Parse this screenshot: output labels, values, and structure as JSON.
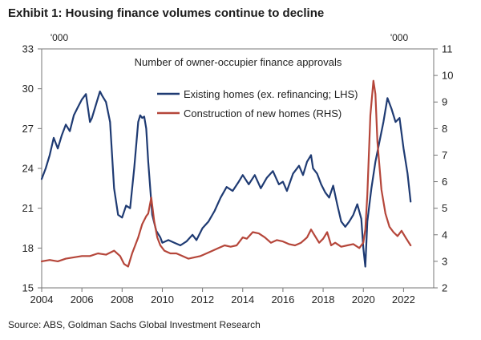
{
  "header": {
    "title": "Exhibit 1: Housing finance volumes continue to decline"
  },
  "footer": {
    "source": "Source: ABS, Goldman Sachs Global Investment Research"
  },
  "chart_data": {
    "type": "line",
    "title": "Number of owner-occupier finance approvals",
    "left_unit": "'000",
    "right_unit": "'000",
    "left_axis": {
      "ylim": [
        15,
        33
      ],
      "ticks": [
        15,
        18,
        21,
        24,
        27,
        30,
        33
      ]
    },
    "right_axis": {
      "ylim": [
        2,
        11
      ],
      "ticks": [
        2,
        3,
        4,
        5,
        6,
        7,
        8,
        9,
        10,
        11
      ]
    },
    "x_axis": {
      "xlim": [
        2004,
        2023.5
      ],
      "ticks": [
        2004,
        2006,
        2008,
        2010,
        2012,
        2014,
        2016,
        2018,
        2020,
        2022
      ]
    },
    "series": [
      {
        "name": "Existing homes (ex. refinancing; LHS)",
        "axis": "left",
        "color": "#1f3b73",
        "x": [
          2004.0,
          2004.2,
          2004.4,
          2004.6,
          2004.8,
          2005.0,
          2005.2,
          2005.4,
          2005.6,
          2005.8,
          2006.0,
          2006.2,
          2006.4,
          2006.5,
          2006.7,
          2006.9,
          2007.0,
          2007.2,
          2007.4,
          2007.6,
          2007.8,
          2008.0,
          2008.2,
          2008.4,
          2008.6,
          2008.8,
          2008.9,
          2009.0,
          2009.1,
          2009.2,
          2009.3,
          2009.5,
          2009.7,
          2009.9,
          2010.0,
          2010.3,
          2010.6,
          2010.9,
          2011.2,
          2011.5,
          2011.7,
          2012.0,
          2012.3,
          2012.6,
          2012.9,
          2013.2,
          2013.5,
          2013.8,
          2014.0,
          2014.3,
          2014.6,
          2014.9,
          2015.2,
          2015.5,
          2015.8,
          2016.0,
          2016.2,
          2016.5,
          2016.8,
          2017.0,
          2017.2,
          2017.4,
          2017.5,
          2017.7,
          2017.9,
          2018.1,
          2018.3,
          2018.5,
          2018.7,
          2018.9,
          2019.1,
          2019.3,
          2019.5,
          2019.7,
          2019.9,
          2020.0,
          2020.1,
          2020.2,
          2020.4,
          2020.6,
          2020.8,
          2021.0,
          2021.2,
          2021.4,
          2021.6,
          2021.8,
          2022.0,
          2022.2,
          2022.35
        ],
        "values": [
          23.2,
          24.0,
          25.0,
          26.3,
          25.5,
          26.5,
          27.3,
          26.8,
          28.0,
          28.6,
          29.2,
          29.6,
          27.5,
          27.8,
          28.8,
          29.8,
          29.5,
          29.0,
          27.5,
          22.5,
          20.5,
          20.3,
          21.2,
          21.0,
          24.0,
          27.5,
          28.0,
          27.8,
          27.9,
          27.0,
          24.5,
          20.5,
          19.3,
          18.8,
          18.4,
          18.6,
          18.4,
          18.2,
          18.5,
          19.0,
          18.6,
          19.5,
          20.0,
          20.8,
          21.8,
          22.6,
          22.3,
          23.0,
          23.5,
          22.8,
          23.5,
          22.5,
          23.3,
          23.8,
          22.8,
          23.0,
          22.3,
          23.6,
          24.2,
          23.5,
          24.5,
          25.0,
          24.0,
          23.6,
          22.8,
          22.2,
          21.8,
          22.7,
          21.3,
          20.0,
          19.6,
          20.0,
          20.5,
          21.3,
          20.2,
          18.0,
          16.6,
          20.0,
          22.5,
          24.5,
          26.0,
          27.5,
          29.3,
          28.5,
          27.5,
          27.8,
          25.5,
          23.6,
          21.5
        ]
      },
      {
        "name": "Construction of new homes (RHS)",
        "axis": "right",
        "color": "#b5463a",
        "x": [
          2004.0,
          2004.4,
          2004.8,
          2005.2,
          2005.6,
          2006.0,
          2006.4,
          2006.8,
          2007.2,
          2007.6,
          2007.9,
          2008.1,
          2008.3,
          2008.5,
          2008.8,
          2009.0,
          2009.2,
          2009.3,
          2009.45,
          2009.6,
          2009.75,
          2009.9,
          2010.1,
          2010.4,
          2010.7,
          2011.0,
          2011.3,
          2011.6,
          2011.9,
          2012.2,
          2012.5,
          2012.8,
          2013.1,
          2013.4,
          2013.7,
          2014.0,
          2014.2,
          2014.5,
          2014.8,
          2015.1,
          2015.4,
          2015.7,
          2016.0,
          2016.3,
          2016.6,
          2016.9,
          2017.2,
          2017.4,
          2017.6,
          2017.8,
          2018.0,
          2018.2,
          2018.4,
          2018.6,
          2018.9,
          2019.2,
          2019.5,
          2019.8,
          2020.0,
          2020.1,
          2020.2,
          2020.35,
          2020.5,
          2020.6,
          2020.7,
          2020.9,
          2021.1,
          2021.3,
          2021.5,
          2021.7,
          2021.9,
          2022.1,
          2022.35
        ],
        "values": [
          3.0,
          3.05,
          3.0,
          3.1,
          3.15,
          3.2,
          3.2,
          3.3,
          3.25,
          3.4,
          3.2,
          2.9,
          2.8,
          3.3,
          3.9,
          4.4,
          4.7,
          4.8,
          5.4,
          4.5,
          3.9,
          3.6,
          3.4,
          3.3,
          3.3,
          3.2,
          3.1,
          3.15,
          3.2,
          3.3,
          3.4,
          3.5,
          3.6,
          3.55,
          3.6,
          3.9,
          3.85,
          4.1,
          4.05,
          3.9,
          3.7,
          3.8,
          3.75,
          3.65,
          3.6,
          3.7,
          3.9,
          4.2,
          3.95,
          3.7,
          3.85,
          4.1,
          3.6,
          3.7,
          3.55,
          3.6,
          3.65,
          3.5,
          3.7,
          4.2,
          5.5,
          8.5,
          9.8,
          9.3,
          7.5,
          5.7,
          4.8,
          4.3,
          4.1,
          3.95,
          4.15,
          3.9,
          3.6
        ]
      }
    ]
  }
}
